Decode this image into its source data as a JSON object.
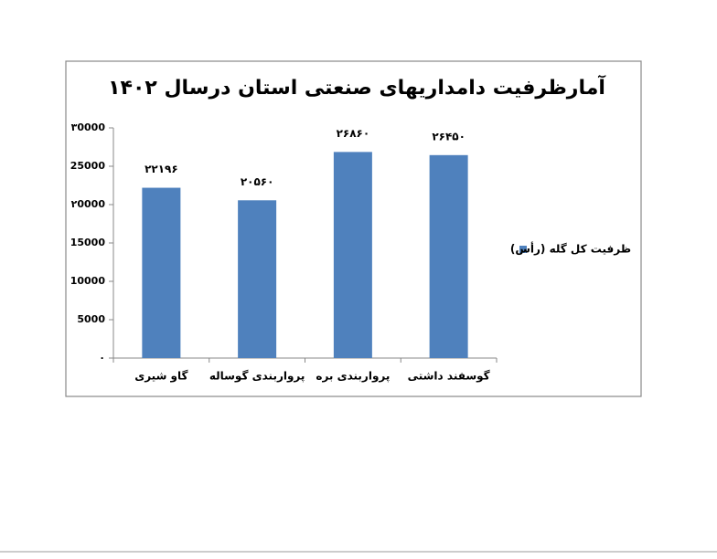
{
  "chart_data": {
    "type": "bar",
    "title": "آمارظرفیت دامداریهای صنعتی استان درسال ۱۴۰۲",
    "categories": [
      "گاو شیری",
      "پرواربندی گوساله",
      "پرواربندی بره",
      "گوسفند داشتی"
    ],
    "series": [
      {
        "name": "ظرفیت کل گله (رأس)",
        "color": "#4f81bd",
        "values": [
          22196,
          20560,
          26860,
          26450
        ],
        "value_labels": [
          "۲۲۱۹۶",
          "۲۰۵۶۰",
          "۲۶۸۶۰",
          "۲۶۴۵۰"
        ]
      }
    ],
    "ylim": [
      0,
      30000
    ],
    "yticks": [
      {
        "value": 0,
        "label": "۰"
      },
      {
        "value": 5000,
        "label": "5000"
      },
      {
        "value": 10000,
        "label": "10000"
      },
      {
        "value": 15000,
        "label": "15000"
      },
      {
        "value": 20000,
        "label": "۲0000"
      },
      {
        "value": 25000,
        "label": "25000"
      },
      {
        "value": 30000,
        "label": "۳0000"
      }
    ],
    "grid": false,
    "legend": "right"
  }
}
